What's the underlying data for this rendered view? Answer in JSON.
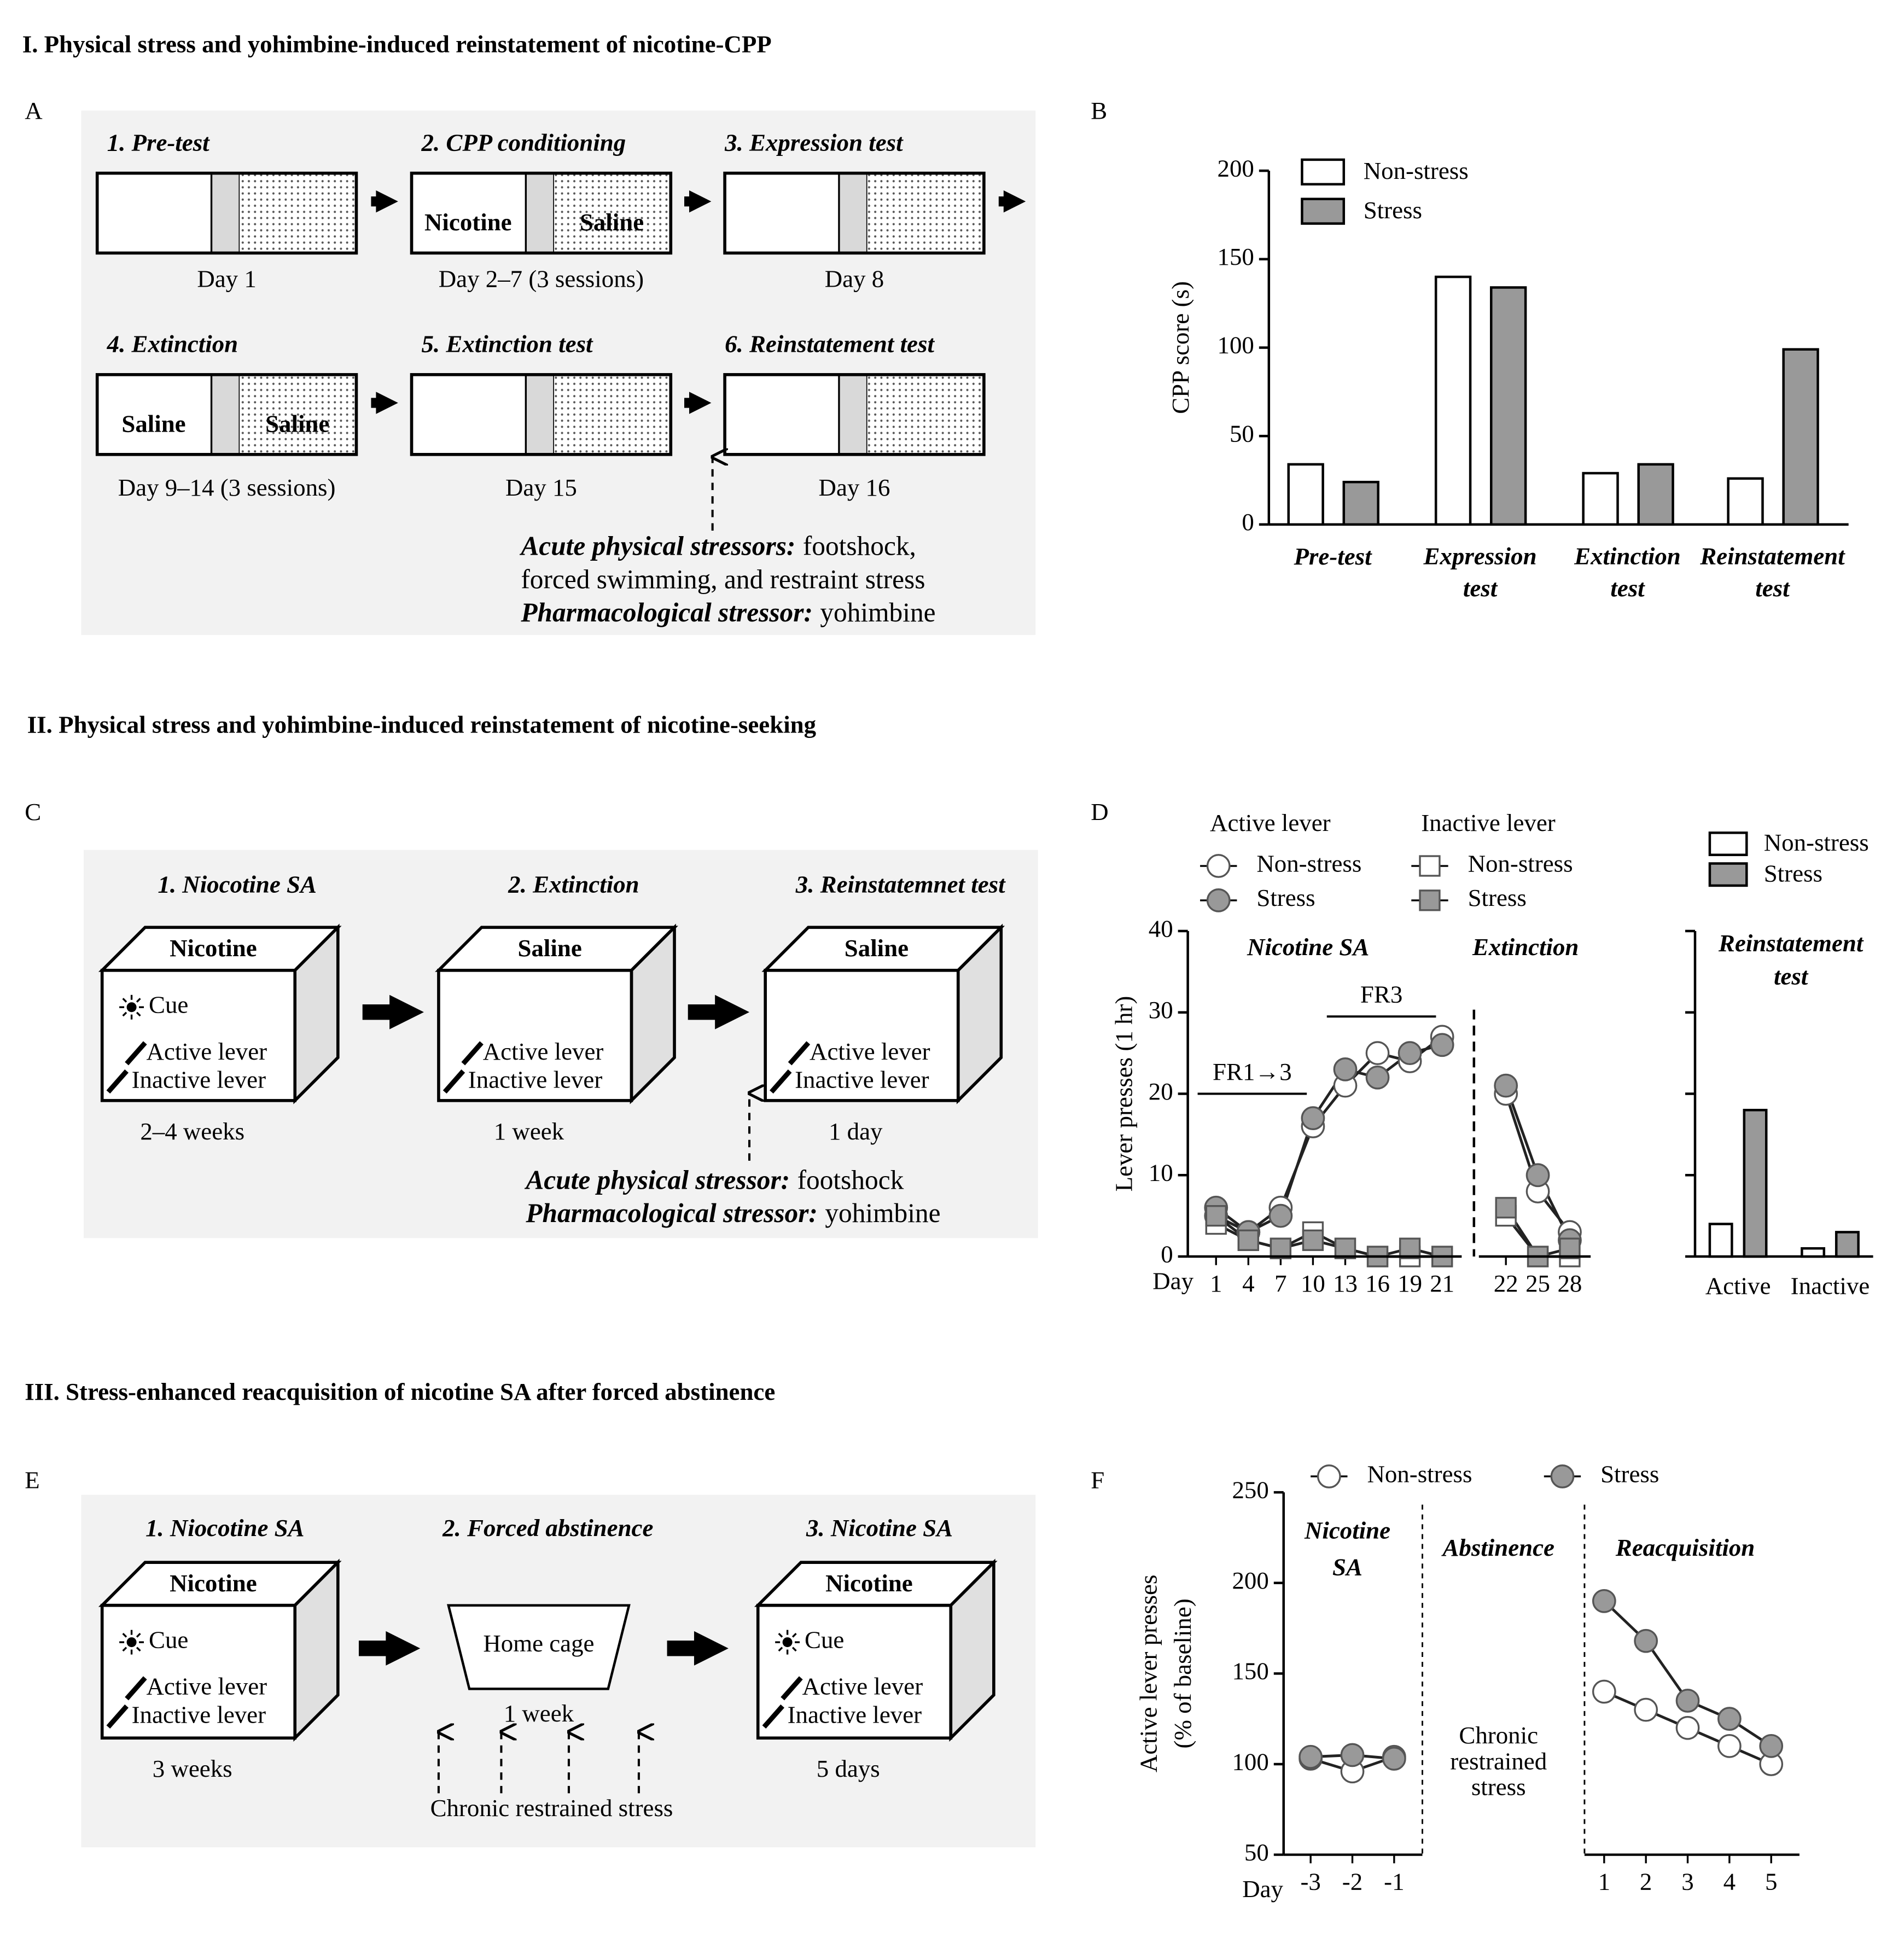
{
  "sections": [
    "I. Physical stress and yohimbine-induced reinstatement of nicotine-CPP",
    "II. Physical stress and yohimbine-induced reinstatement of  nicotine-seeking",
    "III. Stress-enhanced reacquisition of nicotine SA after forced abstinence"
  ],
  "panel_letters": [
    "A",
    "B",
    "C",
    "D",
    "E",
    "F"
  ],
  "diagram_A": {
    "steps": [
      {
        "label": "1. Pre-test",
        "day": "Day 1"
      },
      {
        "label": "2. CPP conditioning",
        "left": "Nicotine",
        "right": "Saline",
        "day": "Day 2–7 (3 sessions)"
      },
      {
        "label": "3. Expression test",
        "day": "Day 8"
      },
      {
        "label": "4. Extinction",
        "left": "Saline",
        "right": "Saline",
        "day": "Day 9–14 (3 sessions)"
      },
      {
        "label": "5. Extinction test",
        "day": "Day 15"
      },
      {
        "label": "6. Reinstatement test",
        "day": "Day 16"
      }
    ],
    "note": [
      {
        "bold": "Acute physical stressors:",
        "text": "footshock,"
      },
      {
        "text": "forced swimming, and restraint stress"
      },
      {
        "bold": "Pharmacological stressor:",
        "text": "yohimbine"
      }
    ]
  },
  "diagram_C": {
    "steps": [
      {
        "label": "1. Niocotine SA",
        "box": "Nicotine",
        "cue": "Cue",
        "levers": [
          "Active lever",
          "Inactive lever"
        ],
        "duration": "2–4 weeks"
      },
      {
        "label": "2. Extinction",
        "box": "Saline",
        "levers": [
          "Active lever",
          "Inactive lever"
        ],
        "duration": "1 week"
      },
      {
        "label": "3. Reinstatemnet test",
        "box": "Saline",
        "levers": [
          "Active lever",
          "Inactive lever"
        ],
        "duration": "1 day"
      }
    ],
    "note": [
      {
        "bold": "Acute physical stressor:",
        "text": "footshock"
      },
      {
        "bold": "Pharmacological stressor:",
        "text": "yohimbine"
      }
    ]
  },
  "diagram_E": {
    "steps": [
      {
        "label": "1. Niocotine SA",
        "box": "Nicotine",
        "cue": "Cue",
        "levers": [
          "Active lever",
          "Inactive lever"
        ],
        "duration": "3 weeks"
      },
      {
        "label": "2. Forced abstinence",
        "box": "Home cage",
        "duration": "1 week"
      },
      {
        "label": "3. Nicotine SA",
        "box": "Nicotine",
        "cue": "Cue",
        "levers": [
          "Active lever",
          "Inactive lever"
        ],
        "duration": "5 days"
      }
    ],
    "note": "Chronic restrained stress"
  },
  "chart_data": [
    {
      "type": "bar",
      "ylabel": "CPP score (s)",
      "categories": [
        "Pre-test",
        "Expression\ntest",
        "Extinction\ntest",
        "Reinstatement\ntest"
      ],
      "series": [
        {
          "name": "Non-stress",
          "color": "#ffffff",
          "values": [
            34,
            140,
            29,
            26
          ]
        },
        {
          "name": "Stress",
          "color": "#999999",
          "values": [
            24,
            134,
            34,
            99
          ]
        }
      ],
      "ylim": [
        0,
        200
      ],
      "yticks": [
        0,
        50,
        100,
        150,
        200
      ]
    },
    {
      "type": "line",
      "ylabel": "Lever presses (1 hr)",
      "xlabel": "Day",
      "ylim": [
        0,
        40
      ],
      "yticks": [
        0,
        10,
        20,
        30,
        40
      ],
      "phases": [
        {
          "label": "Nicotine SA",
          "categories": [
            "1",
            "4",
            "7",
            "10",
            "13",
            "16",
            "19",
            "21"
          ]
        },
        {
          "label": "Extinction",
          "categories": [
            "22",
            "25",
            "28"
          ]
        }
      ],
      "series_groups": [
        {
          "name": "Active lever",
          "series": [
            {
              "name": "Non-stress",
              "marker": "circle",
              "color": "#ffffff",
              "values": [
                5,
                3,
                6,
                16,
                21,
                25,
                24,
                27,
                20,
                8,
                3
              ]
            },
            {
              "name": "Stress",
              "marker": "circle",
              "color": "#999999",
              "values": [
                6,
                3,
                5,
                17,
                23,
                22,
                25,
                26,
                21,
                10,
                2
              ]
            }
          ]
        },
        {
          "name": "Inactive lever",
          "series": [
            {
              "name": "Non-stress",
              "marker": "square",
              "color": "#ffffff",
              "values": [
                4,
                2,
                1,
                3,
                1,
                0,
                0,
                0,
                5,
                0,
                0
              ]
            },
            {
              "name": "Stress",
              "marker": "square",
              "color": "#999999",
              "values": [
                5,
                2,
                1,
                2,
                1,
                0,
                1,
                0,
                6,
                0,
                1
              ]
            }
          ]
        }
      ],
      "annotations": [
        {
          "label": "FR1→3",
          "from": "1",
          "to": "10",
          "y": 20
        },
        {
          "label": "FR3",
          "from": "13",
          "to": "21",
          "y": 29.5
        }
      ]
    },
    {
      "type": "bar",
      "title": "Reinstatement\ntest",
      "categories": [
        "Active",
        "Inactive"
      ],
      "series": [
        {
          "name": "Non-stress",
          "color": "#ffffff",
          "values": [
            4,
            1
          ]
        },
        {
          "name": "Stress",
          "color": "#999999",
          "values": [
            18,
            3
          ]
        }
      ],
      "ylim": [
        0,
        40
      ],
      "yticks": [
        0,
        10,
        20,
        30,
        40
      ]
    },
    {
      "type": "line",
      "ylabel": "Active lever presses\n(% of baseline)",
      "xlabel": "Day",
      "ylim": [
        50,
        250
      ],
      "yticks": [
        50,
        100,
        150,
        200,
        250
      ],
      "phases": [
        {
          "label": "Nicotine\nSA",
          "categories": [
            "-3",
            "-2",
            "-1"
          ]
        },
        {
          "label": "Abstinence",
          "note": "Chronic\nrestrained\nstress"
        },
        {
          "label": "Reacquisition",
          "categories": [
            "1",
            "2",
            "3",
            "4",
            "5"
          ]
        }
      ],
      "series": [
        {
          "name": "Non-stress",
          "marker": "circle",
          "color": "#ffffff",
          "values": [
            103,
            96,
            104,
            140,
            130,
            120,
            110,
            100
          ]
        },
        {
          "name": "Stress",
          "marker": "circle",
          "color": "#999999",
          "values": [
            104,
            105,
            103,
            190,
            168,
            135,
            125,
            110
          ]
        }
      ]
    }
  ]
}
